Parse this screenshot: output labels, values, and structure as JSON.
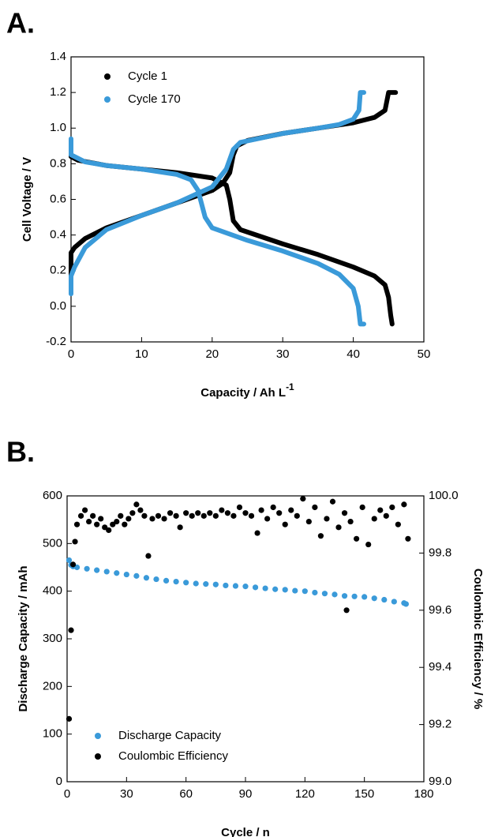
{
  "chart_data": [
    {
      "type": "line",
      "title": "A.",
      "xlabel": "Capacity / Ah L",
      "xlabel_sup": "-1",
      "ylabel": "Cell Voltage / V",
      "xlim": [
        0,
        50
      ],
      "xticks": [
        0,
        10,
        20,
        30,
        40,
        50
      ],
      "ylim": [
        -0.2,
        1.4
      ],
      "yticks": [
        -0.2,
        {
          "value": 0,
          "label": "0.0"
        },
        0.2,
        0.4,
        0.6,
        0.8,
        {
          "value": 1,
          "label": "1.0"
        },
        1.2,
        1.4
      ],
      "legend": "upper left",
      "series": [
        {
          "name": "Cycle 1",
          "color": "#000000",
          "x": [
            0,
            0,
            0.5,
            2,
            5,
            10,
            15,
            20,
            21.5,
            22.5,
            23,
            23.5,
            25,
            30,
            35,
            40,
            43,
            44.5,
            45,
            46,
            null,
            0,
            0,
            1,
            5,
            10,
            15,
            20,
            22,
            22.5,
            23,
            24,
            30,
            35,
            40,
            43,
            44.5,
            45,
            45.3,
            45.5
          ],
          "values": [
            0.14,
            0.3,
            0.33,
            0.38,
            0.44,
            0.51,
            0.58,
            0.65,
            0.69,
            0.75,
            0.85,
            0.9,
            0.93,
            0.97,
            1.0,
            1.03,
            1.06,
            1.1,
            1.2,
            1.2,
            null,
            0.88,
            0.84,
            0.82,
            0.79,
            0.77,
            0.75,
            0.72,
            0.68,
            0.6,
            0.48,
            0.43,
            0.35,
            0.29,
            0.22,
            0.17,
            0.12,
            0.05,
            -0.05,
            -0.1
          ]
        },
        {
          "name": "Cycle 170",
          "color": "#3a9ad9",
          "x": [
            0,
            0,
            0.5,
            2,
            5,
            10,
            15,
            20,
            22,
            23,
            24,
            30,
            35,
            38,
            40,
            40.8,
            41,
            41.5,
            null,
            0,
            0,
            2,
            5,
            10,
            15,
            17,
            18,
            19,
            20,
            25,
            30,
            35,
            38,
            40,
            40.7,
            41,
            41.5
          ],
          "values": [
            0.07,
            0.17,
            0.22,
            0.33,
            0.43,
            0.51,
            0.58,
            0.67,
            0.77,
            0.88,
            0.92,
            0.97,
            1.0,
            1.02,
            1.05,
            1.1,
            1.2,
            1.2,
            null,
            0.94,
            0.85,
            0.81,
            0.79,
            0.77,
            0.74,
            0.71,
            0.65,
            0.5,
            0.44,
            0.37,
            0.31,
            0.24,
            0.18,
            0.1,
            0,
            -0.1,
            -0.1
          ]
        }
      ]
    },
    {
      "type": "scatter",
      "title": "B.",
      "xlabel": "Cycle / n",
      "ylabel": "Discharge Capacity / mAh",
      "y2label": "Coulombic Efficiency / %",
      "xlim": [
        0,
        180
      ],
      "xticks": [
        0,
        30,
        60,
        90,
        120,
        150,
        180
      ],
      "ylim": [
        0,
        600
      ],
      "yticks": [
        0,
        100,
        200,
        300,
        400,
        500,
        600
      ],
      "y2lim": [
        99,
        100
      ],
      "y2ticks": [
        {
          "value": 99,
          "label": "99.0"
        },
        99.2,
        99.4,
        99.6,
        99.8,
        {
          "value": 100,
          "label": "100.0"
        }
      ],
      "legend": "lower left",
      "series": [
        {
          "name": "Discharge Capacity",
          "color": "#3a9ad9",
          "x": [
            1,
            2,
            3,
            5,
            10,
            15,
            20,
            25,
            30,
            35,
            40,
            45,
            50,
            55,
            60,
            65,
            70,
            75,
            80,
            85,
            90,
            95,
            100,
            105,
            110,
            115,
            120,
            125,
            130,
            135,
            140,
            145,
            150,
            155,
            160,
            165,
            170,
            171
          ],
          "values": [
            465,
            455,
            452,
            450,
            447,
            444,
            441,
            438,
            435,
            432,
            428,
            425,
            422,
            420,
            418,
            416,
            415,
            414,
            412,
            411,
            410,
            408,
            406,
            404,
            403,
            401,
            400,
            397,
            395,
            393,
            390,
            389,
            388,
            385,
            382,
            378,
            375,
            373
          ]
        },
        {
          "name": "Coulombic Efficiency",
          "color": "#000000",
          "axis": "y2",
          "x": [
            1,
            2,
            3,
            4,
            5,
            7,
            9,
            11,
            13,
            15,
            17,
            19,
            21,
            23,
            25,
            27,
            29,
            31,
            33,
            35,
            37,
            39,
            41,
            43,
            46,
            49,
            52,
            55,
            57,
            60,
            63,
            66,
            69,
            72,
            75,
            78,
            81,
            84,
            87,
            90,
            93,
            96,
            98,
            101,
            104,
            107,
            110,
            113,
            116,
            119,
            122,
            125,
            128,
            131,
            134,
            137,
            140,
            141,
            143,
            146,
            149,
            152,
            155,
            158,
            161,
            164,
            167,
            170,
            172
          ],
          "values": [
            99.22,
            99.53,
            99.76,
            99.84,
            99.9,
            99.93,
            99.95,
            99.91,
            99.93,
            99.9,
            99.92,
            99.89,
            99.88,
            99.9,
            99.91,
            99.93,
            99.9,
            99.92,
            99.94,
            99.97,
            99.95,
            99.93,
            99.79,
            99.92,
            99.93,
            99.92,
            99.94,
            99.93,
            99.89,
            99.94,
            99.93,
            99.94,
            99.93,
            99.94,
            99.93,
            99.95,
            99.94,
            99.93,
            99.96,
            99.94,
            99.93,
            99.87,
            99.95,
            99.92,
            99.96,
            99.94,
            99.9,
            99.95,
            99.93,
            99.99,
            99.91,
            99.96,
            99.86,
            99.92,
            99.98,
            99.89,
            99.94,
            99.6,
            99.91,
            99.85,
            99.96,
            99.83,
            99.92,
            99.95,
            99.93,
            99.96,
            99.9,
            99.97,
            99.85
          ]
        }
      ]
    }
  ]
}
